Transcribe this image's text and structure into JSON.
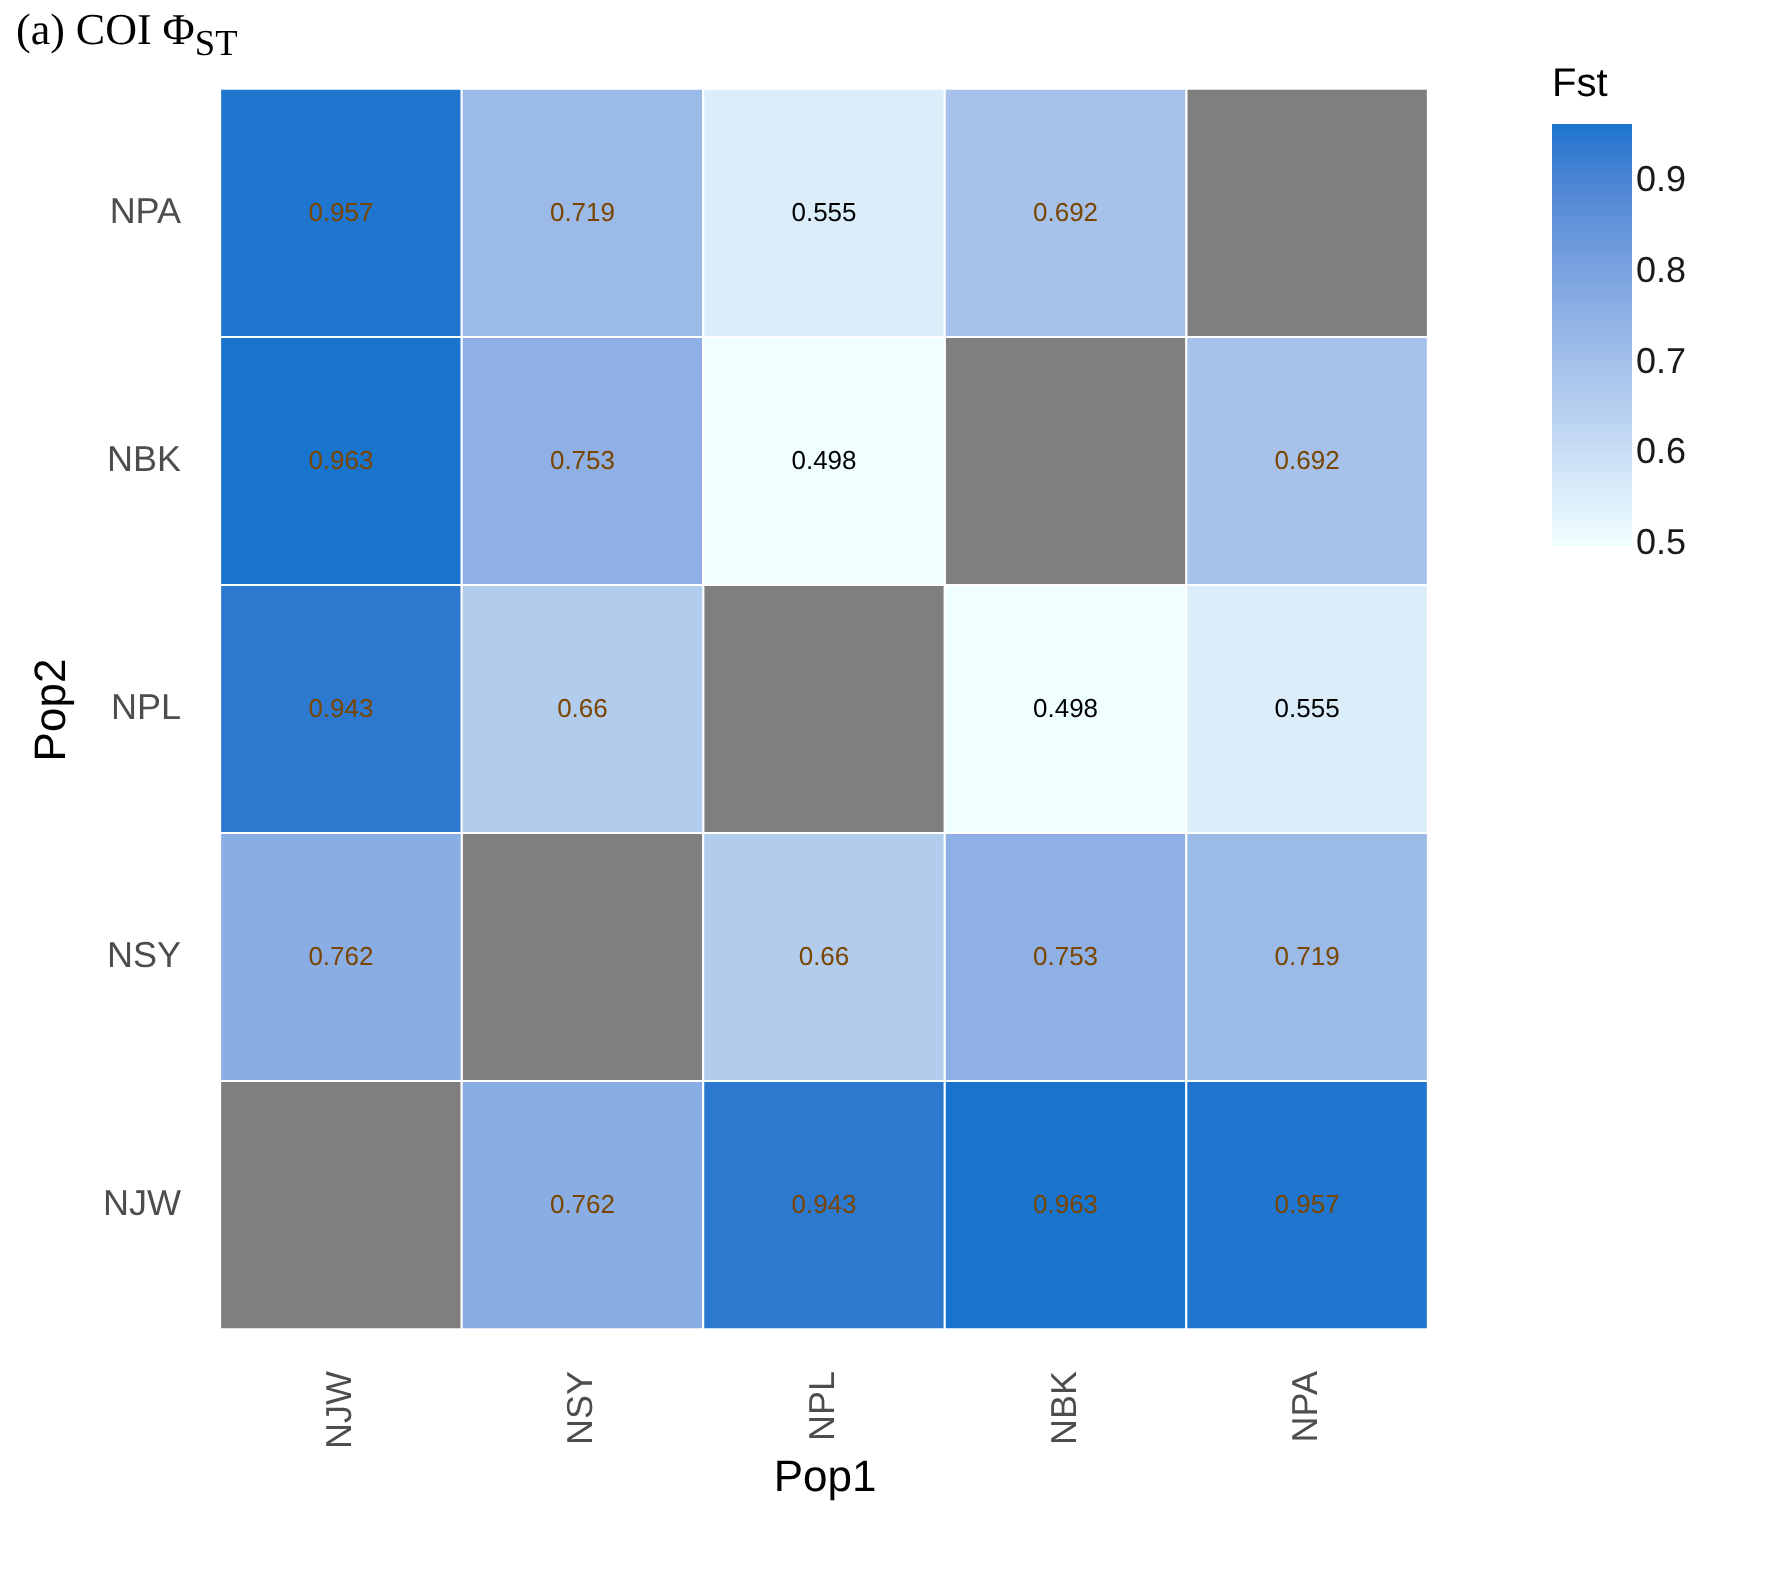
{
  "chart_data": {
    "type": "heatmap",
    "title": "(a) COI Φ$_{ST}$",
    "xlabel": "Pop1",
    "ylabel": "Pop2",
    "legend_title": "Fst",
    "categories": [
      "NJW",
      "NSY",
      "NPL",
      "NBK",
      "NPA"
    ],
    "y_categories": [
      "NPA",
      "NBK",
      "NPL",
      "NSY",
      "NJW"
    ],
    "cells": [
      [
        0.957,
        0.719,
        0.555,
        0.692,
        null
      ],
      [
        0.963,
        0.753,
        0.498,
        null,
        0.692
      ],
      [
        0.943,
        0.66,
        null,
        0.498,
        0.555
      ],
      [
        0.762,
        null,
        0.66,
        0.753,
        0.719
      ],
      [
        null,
        0.762,
        0.943,
        0.963,
        0.957
      ]
    ],
    "clim": [
      0.498,
      0.963
    ],
    "cticks": [
      0.5,
      0.6,
      0.7,
      0.8,
      0.9
    ],
    "data_labels": true
  }
}
